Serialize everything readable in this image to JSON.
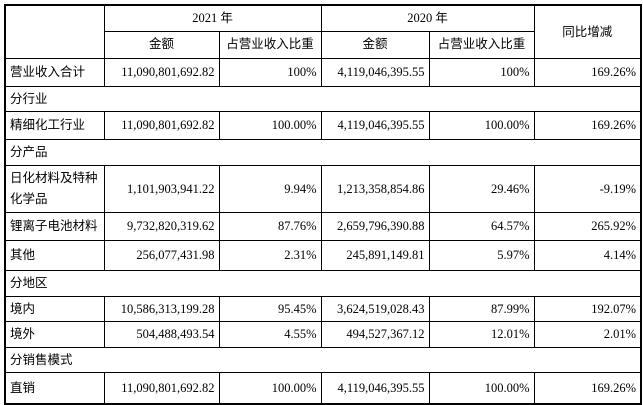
{
  "header": {
    "year_2021": "2021 年",
    "year_2020": "2020 年",
    "yoy": "同比增减",
    "amount_2021": "金额",
    "ratio_2021": "占营业收入比重",
    "amount_2020": "金额",
    "ratio_2020": "占营业收入比重"
  },
  "rows": [
    {
      "type": "data",
      "label": "营业收入合计",
      "a2021": "11,090,801,692.82",
      "p2021": "100%",
      "a2020": "4,119,046,395.55",
      "p2020": "100%",
      "yoy": "169.26%"
    },
    {
      "type": "section",
      "label": "分行业"
    },
    {
      "type": "data",
      "label": "精细化工行业",
      "a2021": "11,090,801,692.82",
      "p2021": "100.00%",
      "a2020": "4,119,046,395.55",
      "p2020": "100.00%",
      "yoy": "169.26%"
    },
    {
      "type": "section",
      "label": "分产品"
    },
    {
      "type": "data",
      "label": "日化材料及特种化学品",
      "a2021": "1,101,903,941.22",
      "p2021": "9.94%",
      "a2020": "1,213,358,854.86",
      "p2020": "29.46%",
      "yoy": "-9.19%"
    },
    {
      "type": "data",
      "label": "锂离子电池材料",
      "a2021": "9,732,820,319.62",
      "p2021": "87.76%",
      "a2020": "2,659,796,390.88",
      "p2020": "64.57%",
      "yoy": "265.92%"
    },
    {
      "type": "data",
      "label": "其他",
      "a2021": "256,077,431.98",
      "p2021": "2.31%",
      "a2020": "245,891,149.81",
      "p2020": "5.97%",
      "yoy": "4.14%"
    },
    {
      "type": "section",
      "label": "分地区"
    },
    {
      "type": "data",
      "label": "境内",
      "a2021": "10,586,313,199.28",
      "p2021": "95.45%",
      "a2020": "3,624,519,028.43",
      "p2020": "87.99%",
      "yoy": "192.07%"
    },
    {
      "type": "data",
      "label": "境外",
      "a2021": "504,488,493.54",
      "p2021": "4.55%",
      "a2020": "494,527,367.12",
      "p2020": "12.01%",
      "yoy": "2.01%"
    },
    {
      "type": "section",
      "label": "分销售模式"
    },
    {
      "type": "data",
      "label": "直销",
      "a2021": "11,090,801,692.82",
      "p2021": "100.00%",
      "a2020": "4,119,046,395.55",
      "p2020": "100.00%",
      "yoy": "169.26%"
    }
  ],
  "colors": {
    "shade_gray": "#d3d3d3",
    "border": "#000000"
  }
}
